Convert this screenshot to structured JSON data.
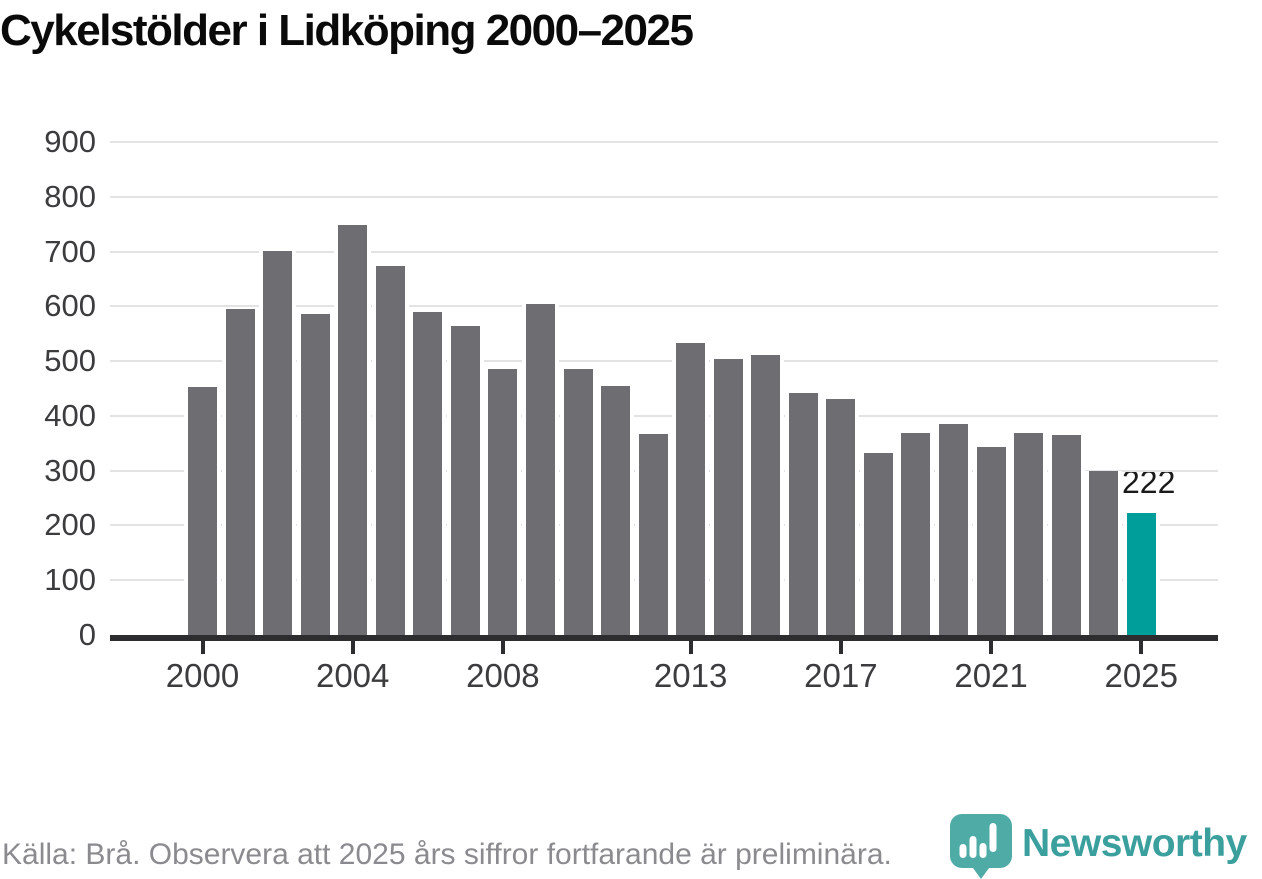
{
  "title": "Cykelstölder i Lidköping 2000–2025",
  "chart_data": {
    "type": "bar",
    "x": [
      2000,
      2001,
      2002,
      2003,
      2004,
      2005,
      2006,
      2007,
      2008,
      2009,
      2010,
      2011,
      2012,
      2013,
      2014,
      2015,
      2016,
      2017,
      2018,
      2019,
      2020,
      2021,
      2022,
      2023,
      2024,
      2025
    ],
    "values": [
      453,
      595,
      701,
      586,
      748,
      674,
      589,
      564,
      485,
      605,
      486,
      454,
      367,
      533,
      503,
      511,
      442,
      431,
      332,
      368,
      386,
      344,
      368,
      365,
      299,
      222
    ],
    "title": "Cykelstölder i Lidköping 2000–2025",
    "xlabel": "",
    "ylabel": "",
    "ylim": [
      0,
      900
    ],
    "ytick_step": 100,
    "yticks": [
      0,
      100,
      200,
      300,
      400,
      500,
      600,
      700,
      800,
      900
    ],
    "xticks": [
      2000,
      2004,
      2008,
      2013,
      2017,
      2021,
      2025
    ],
    "grid": true,
    "legend": "none",
    "bar_color": "#6e6d71",
    "highlight_year": 2025,
    "highlight_color": "#009e9b",
    "highlight_label": "222"
  },
  "footer": {
    "source_note": "Källa: Brå. Observera att 2025 års siffror fortfarande är preliminära."
  },
  "branding": {
    "wordmark": "Newsworthy",
    "logo_icon": "newsworthy-bubble-barchart-icon",
    "wordmark_color": "#3ba09d",
    "icon_color": "#4faba6"
  }
}
